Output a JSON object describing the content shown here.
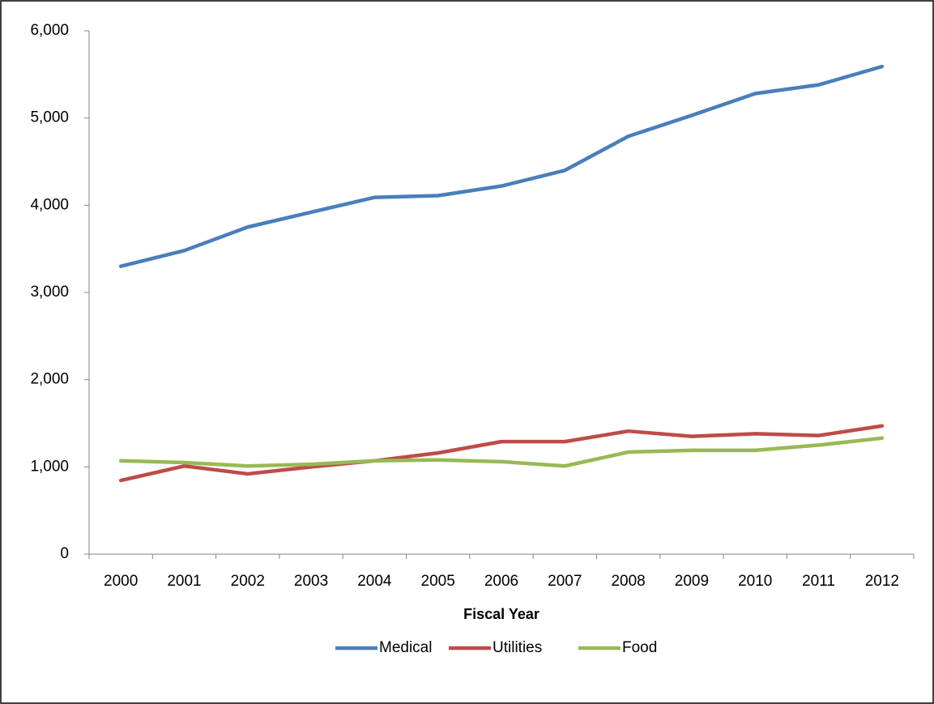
{
  "chart_data": {
    "type": "line",
    "x_label": "Fiscal Year",
    "categories": [
      "2000",
      "2001",
      "2002",
      "2003",
      "2004",
      "2005",
      "2006",
      "2007",
      "2008",
      "2009",
      "2010",
      "2011",
      "2012"
    ],
    "series": [
      {
        "name": "Medical",
        "color": "#4a7ebb",
        "values": [
          3300,
          3480,
          3750,
          3920,
          4090,
          4110,
          4220,
          4400,
          4790,
          5030,
          5280,
          5380,
          5590
        ]
      },
      {
        "name": "Utilities",
        "color": "#be4b48",
        "values": [
          845,
          1010,
          920,
          1000,
          1070,
          1160,
          1290,
          1290,
          1410,
          1350,
          1380,
          1360,
          1470
        ]
      },
      {
        "name": "Food",
        "color": "#98b954",
        "values": [
          1070,
          1050,
          1010,
          1030,
          1070,
          1080,
          1060,
          1010,
          1170,
          1190,
          1190,
          1250,
          1330
        ]
      }
    ],
    "ylim": [
      0,
      6000
    ],
    "yticks": [
      0,
      {
        "value": 1000,
        "label": "1,000"
      },
      {
        "value": 2000,
        "label": "2,000"
      },
      {
        "value": 3000,
        "label": "3,000"
      },
      {
        "value": 4000,
        "label": "4,000"
      },
      {
        "value": 5000,
        "label": "5,000"
      },
      {
        "value": 6000,
        "label": "6,000"
      }
    ],
    "grid": false,
    "legend": "bottom"
  }
}
